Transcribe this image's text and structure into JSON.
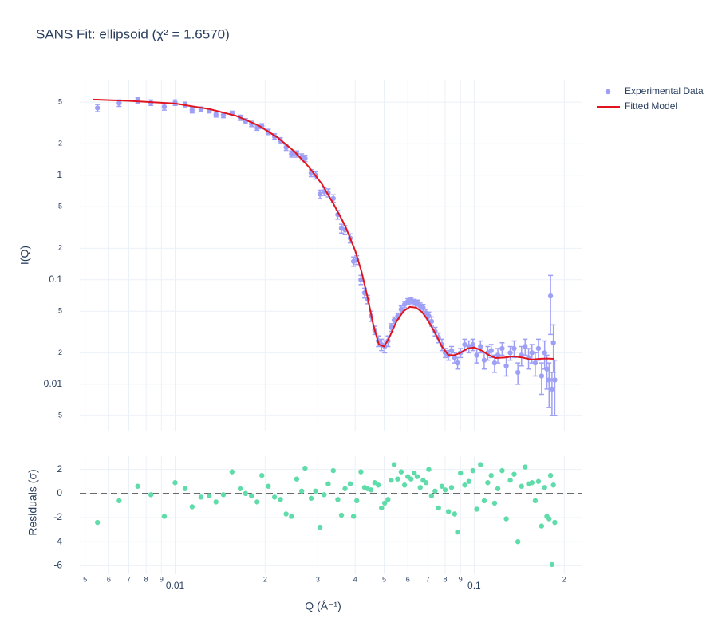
{
  "chart_data": [
    {
      "type": "scatter",
      "title": "SANS Fit: ellipsoid (χ² = 1.6570)",
      "ylabel": "I(Q)",
      "log_x": true,
      "log_y": true,
      "grid": true,
      "legend": "outside-top-right",
      "xlim": [
        0.0048,
        0.23
      ],
      "xticks": [
        {
          "value": 0.005,
          "label": "5"
        },
        {
          "value": 0.006,
          "label": "6"
        },
        {
          "value": 0.007,
          "label": "7"
        },
        {
          "value": 0.008,
          "label": "8"
        },
        {
          "value": 0.009,
          "label": "9"
        },
        0.01,
        {
          "value": 0.02,
          "label": "2"
        },
        {
          "value": 0.03,
          "label": "3"
        },
        {
          "value": 0.04,
          "label": "4"
        },
        {
          "value": 0.05,
          "label": "5"
        },
        {
          "value": 0.06,
          "label": "6"
        },
        {
          "value": 0.07,
          "label": "7"
        },
        {
          "value": 0.08,
          "label": "8"
        },
        {
          "value": 0.09,
          "label": "9"
        },
        0.1,
        {
          "value": 0.2,
          "label": "2"
        }
      ],
      "ylim": [
        0.0036,
        8.2
      ],
      "yticks": [
        5,
        2,
        1,
        {
          "value": 0.5,
          "label": "5"
        },
        {
          "value": 0.2,
          "label": "2"
        },
        0.1,
        {
          "value": 0.05,
          "label": "5"
        },
        {
          "value": 0.02,
          "label": "2"
        },
        0.01,
        {
          "value": 0.005,
          "label": "5"
        }
      ],
      "series": [
        {
          "name": "Experimental Data",
          "color": "#9ea0f6",
          "mode": "markers",
          "x": [
            0.0055,
            0.0065,
            0.0075,
            0.0083,
            0.0092,
            0.01,
            0.0108,
            0.0114,
            0.0122,
            0.013,
            0.0137,
            0.0145,
            0.0155,
            0.0165,
            0.0172,
            0.018,
            0.0188,
            0.0195,
            0.0205,
            0.0215,
            0.0225,
            0.0235,
            0.0245,
            0.0255,
            0.0265,
            0.0272,
            0.0285,
            0.0295,
            0.0305,
            0.0315,
            0.0325,
            0.0338,
            0.035,
            0.036,
            0.037,
            0.0385,
            0.0395,
            0.0405,
            0.0418,
            0.043,
            0.044,
            0.0452,
            0.0465,
            0.0478,
            0.049,
            0.0502,
            0.0515,
            0.0528,
            0.054,
            0.0555,
            0.057,
            0.0585,
            0.06,
            0.0615,
            0.063,
            0.0645,
            0.066,
            0.0675,
            0.069,
            0.0705,
            0.072,
            0.074,
            0.076,
            0.078,
            0.08,
            0.082,
            0.084,
            0.086,
            0.088,
            0.09,
            0.093,
            0.096,
            0.099,
            0.102,
            0.105,
            0.108,
            0.111,
            0.114,
            0.117,
            0.12,
            0.124,
            0.128,
            0.132,
            0.136,
            0.14,
            0.144,
            0.148,
            0.152,
            0.156,
            0.16,
            0.164,
            0.168,
            0.172,
            0.175,
            0.178,
            0.18,
            0.182,
            0.184,
            0.186
          ],
          "values": [
            4.4,
            4.9,
            5.2,
            4.95,
            4.5,
            4.95,
            4.75,
            4.2,
            4.3,
            4.15,
            3.8,
            3.75,
            3.9,
            3.55,
            3.3,
            3.1,
            2.85,
            2.95,
            2.6,
            2.35,
            2.15,
            1.85,
            1.6,
            1.6,
            1.5,
            1.45,
            1.05,
            1.0,
            0.66,
            0.7,
            0.68,
            0.6,
            0.42,
            0.31,
            0.3,
            0.25,
            0.15,
            0.155,
            0.1,
            0.075,
            0.065,
            0.045,
            0.033,
            0.026,
            0.024,
            0.023,
            0.026,
            0.035,
            0.041,
            0.045,
            0.052,
            0.058,
            0.062,
            0.063,
            0.061,
            0.06,
            0.056,
            0.054,
            0.048,
            0.045,
            0.04,
            0.032,
            0.028,
            0.024,
            0.02,
            0.019,
            0.021,
            0.018,
            0.016,
            0.02,
            0.024,
            0.023,
            0.024,
            0.019,
            0.023,
            0.017,
            0.02,
            0.021,
            0.016,
            0.019,
            0.022,
            0.015,
            0.02,
            0.022,
            0.013,
            0.019,
            0.023,
            0.018,
            0.02,
            0.016,
            0.022,
            0.012,
            0.02,
            0.014,
            0.011,
            0.07,
            0.009,
            0.025,
            0.011
          ],
          "errors": [
            0.35,
            0.35,
            0.3,
            0.3,
            0.3,
            0.3,
            0.25,
            0.25,
            0.2,
            0.2,
            0.2,
            0.2,
            0.2,
            0.2,
            0.18,
            0.18,
            0.16,
            0.16,
            0.15,
            0.14,
            0.14,
            0.12,
            0.11,
            0.11,
            0.1,
            0.1,
            0.08,
            0.08,
            0.06,
            0.06,
            0.06,
            0.05,
            0.04,
            0.03,
            0.03,
            0.025,
            0.015,
            0.015,
            0.01,
            0.008,
            0.006,
            0.005,
            0.003,
            0.003,
            0.003,
            0.003,
            0.003,
            0.003,
            0.003,
            0.003,
            0.004,
            0.004,
            0.004,
            0.004,
            0.004,
            0.004,
            0.004,
            0.004,
            0.004,
            0.004,
            0.004,
            0.003,
            0.003,
            0.003,
            0.002,
            0.002,
            0.002,
            0.002,
            0.002,
            0.002,
            0.003,
            0.003,
            0.003,
            0.003,
            0.003,
            0.003,
            0.003,
            0.003,
            0.003,
            0.003,
            0.003,
            0.003,
            0.003,
            0.004,
            0.003,
            0.004,
            0.004,
            0.004,
            0.004,
            0.004,
            0.005,
            0.004,
            0.006,
            0.005,
            0.005,
            0.04,
            0.004,
            0.012,
            0.006
          ]
        },
        {
          "name": "Fitted Model",
          "color": "#e0141e",
          "mode": "lines",
          "x": [
            0.0053,
            0.007,
            0.01,
            0.013,
            0.016,
            0.019,
            0.022,
            0.025,
            0.028,
            0.031,
            0.034,
            0.037,
            0.04,
            0.042,
            0.044,
            0.046,
            0.048,
            0.05,
            0.052,
            0.055,
            0.058,
            0.061,
            0.064,
            0.067,
            0.07,
            0.074,
            0.078,
            0.082,
            0.086,
            0.09,
            0.095,
            0.1,
            0.106,
            0.112,
            0.118,
            0.126,
            0.135,
            0.145,
            0.155,
            0.165,
            0.175,
            0.185
          ],
          "values": [
            5.3,
            5.15,
            4.85,
            4.3,
            3.7,
            3.0,
            2.3,
            1.7,
            1.2,
            0.82,
            0.52,
            0.33,
            0.19,
            0.12,
            0.068,
            0.037,
            0.024,
            0.023,
            0.028,
            0.04,
            0.05,
            0.055,
            0.054,
            0.049,
            0.041,
            0.031,
            0.023,
            0.019,
            0.019,
            0.02,
            0.022,
            0.0225,
            0.021,
            0.019,
            0.0178,
            0.018,
            0.0185,
            0.018,
            0.0172,
            0.0175,
            0.0176,
            0.0175
          ]
        }
      ]
    },
    {
      "type": "scatter",
      "xlabel": "Q (Å⁻¹)",
      "ylabel": "Residuals (σ)",
      "log_x": true,
      "grid": true,
      "hline": 0,
      "xlim": [
        0.0048,
        0.23
      ],
      "xticks": [
        {
          "value": 0.005,
          "label": "5"
        },
        {
          "value": 0.006,
          "label": "6"
        },
        {
          "value": 0.007,
          "label": "7"
        },
        {
          "value": 0.008,
          "label": "8"
        },
        {
          "value": 0.009,
          "label": "9"
        },
        0.01,
        {
          "value": 0.02,
          "label": "2"
        },
        {
          "value": 0.03,
          "label": "3"
        },
        {
          "value": 0.04,
          "label": "4"
        },
        {
          "value": 0.05,
          "label": "5"
        },
        {
          "value": 0.06,
          "label": "6"
        },
        {
          "value": 0.07,
          "label": "7"
        },
        {
          "value": 0.08,
          "label": "8"
        },
        {
          "value": 0.09,
          "label": "9"
        },
        0.1,
        {
          "value": 0.2,
          "label": "2"
        }
      ],
      "ylim": [
        -6.7,
        3.1
      ],
      "yticks": [
        2,
        0,
        -2,
        -4,
        -6
      ],
      "series": [
        {
          "color": "#5fdcaa",
          "mode": "markers",
          "values": [
            -2.4,
            -0.6,
            0.6,
            -0.1,
            -1.9,
            0.9,
            0.4,
            -1.1,
            -0.3,
            -0.2,
            -0.7,
            -0.1,
            1.8,
            0.4,
            0.0,
            -0.2,
            -0.7,
            1.5,
            0.6,
            -0.3,
            -0.5,
            -1.7,
            -1.9,
            1.2,
            0.2,
            2.1,
            -0.4,
            0.2,
            -2.8,
            -0.1,
            0.8,
            1.9,
            -0.5,
            -1.8,
            0.4,
            0.8,
            -1.9,
            -0.6,
            1.8,
            0.5,
            0.4,
            0.3,
            0.9,
            0.7,
            -1.2,
            -0.8,
            -0.5,
            1.1,
            2.4,
            1.2,
            1.8,
            0.7,
            1.4,
            1.2,
            1.7,
            1.4,
            0.5,
            1.1,
            0.9,
            2.0,
            -0.2,
            0.2,
            -1.2,
            0.6,
            0.3,
            -1.5,
            0.5,
            -1.7,
            -3.2,
            1.7,
            0.7,
            1.0,
            1.9,
            -1.3,
            2.4,
            -0.6,
            0.9,
            1.5,
            -0.8,
            0.4,
            1.9,
            -2.1,
            1.1,
            1.6,
            -4.0,
            0.6,
            2.2,
            0.8,
            0.9,
            -0.6,
            1.0,
            -2.7,
            0.5,
            -1.9,
            -2.1,
            1.5,
            -5.9,
            0.7,
            -2.4
          ]
        }
      ]
    }
  ]
}
